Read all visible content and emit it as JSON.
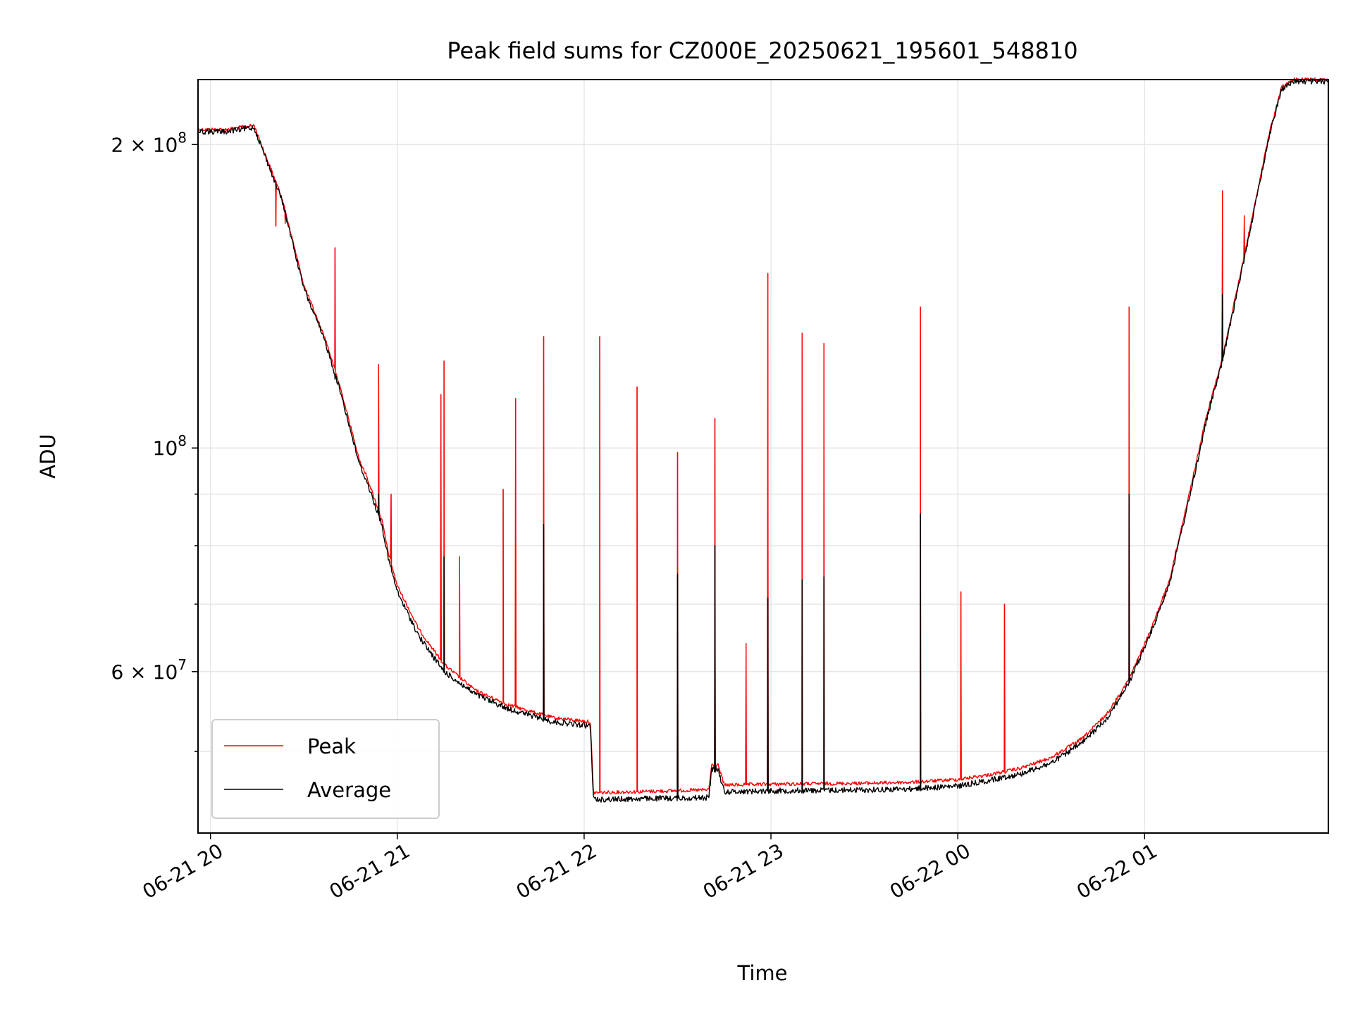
{
  "chart_data": {
    "type": "line",
    "title": "Peak field sums for CZ000E_20250621_195601_548810",
    "xlabel": "Time",
    "ylabel": "ADU",
    "yscale": "log",
    "ylim": [
      41500000,
      232000000
    ],
    "xlim": [
      "2025-06-21 19:56",
      "2025-06-22 01:59"
    ],
    "grid": true,
    "legend_position": "lower-left",
    "x_ticks": [
      {
        "t": "2025-06-21 20:00",
        "label": "06-21 20"
      },
      {
        "t": "2025-06-21 21:00",
        "label": "06-21 21"
      },
      {
        "t": "2025-06-21 22:00",
        "label": "06-21 22"
      },
      {
        "t": "2025-06-21 23:00",
        "label": "06-21 23"
      },
      {
        "t": "2025-06-22 00:00",
        "label": "06-22 00"
      },
      {
        "t": "2025-06-22 01:00",
        "label": "06-22 01"
      }
    ],
    "y_ticks": [
      {
        "value": 60000000,
        "base": "6",
        "exp": "7"
      },
      {
        "value": 100000000,
        "base": "",
        "exp": "8"
      },
      {
        "value": 200000000,
        "base": "2",
        "exp": "8"
      }
    ],
    "y_minor_ticks": [
      50000000,
      70000000,
      80000000,
      90000000
    ],
    "series": [
      {
        "name": "Peak",
        "color": "#ff0000",
        "baseline": [
          [
            "2025-06-21 19:56",
            207000000
          ],
          [
            "2025-06-21 20:05",
            207000000
          ],
          [
            "2025-06-21 20:14",
            209000000
          ],
          [
            "2025-06-21 20:23",
            177000000
          ],
          [
            "2025-06-21 20:30",
            145000000
          ],
          [
            "2025-06-21 20:37",
            128000000
          ],
          [
            "2025-06-21 20:42",
            114000000
          ],
          [
            "2025-06-21 20:45",
            105000000
          ],
          [
            "2025-06-21 20:48",
            97000000
          ],
          [
            "2025-06-21 20:50",
            94000000
          ],
          [
            "2025-06-21 20:55",
            85000000
          ],
          [
            "2025-06-21 20:57",
            79000000
          ],
          [
            "2025-06-21 21:00",
            73000000
          ],
          [
            "2025-06-21 21:07",
            66000000
          ],
          [
            "2025-06-21 21:15",
            61000000
          ],
          [
            "2025-06-21 21:25",
            57500000
          ],
          [
            "2025-06-21 21:35",
            55700000
          ],
          [
            "2025-06-21 21:50",
            54000000
          ],
          [
            "2025-06-21 22:02",
            53500000
          ],
          [
            "2025-06-21 22:03",
            45500000
          ],
          [
            "2025-06-21 22:40",
            45800000
          ],
          [
            "2025-06-21 22:41",
            48500000
          ],
          [
            "2025-06-21 22:43",
            48500000
          ],
          [
            "2025-06-21 22:45",
            46300000
          ],
          [
            "2025-06-21 23:00",
            46400000
          ],
          [
            "2025-06-21 23:30",
            46500000
          ],
          [
            "2025-06-21 23:45",
            46600000
          ],
          [
            "2025-06-22 00:00",
            46900000
          ],
          [
            "2025-06-22 00:10",
            47400000
          ],
          [
            "2025-06-22 00:20",
            48100000
          ],
          [
            "2025-06-22 00:30",
            49300000
          ],
          [
            "2025-06-22 00:40",
            51500000
          ],
          [
            "2025-06-22 00:48",
            54500000
          ],
          [
            "2025-06-22 00:55",
            59000000
          ],
          [
            "2025-06-22 01:02",
            66000000
          ],
          [
            "2025-06-22 01:08",
            74000000
          ],
          [
            "2025-06-22 01:15",
            92000000
          ],
          [
            "2025-06-22 01:20",
            108000000
          ],
          [
            "2025-06-22 01:25",
            123000000
          ],
          [
            "2025-06-22 01:30",
            145000000
          ],
          [
            "2025-06-22 01:35",
            172000000
          ],
          [
            "2025-06-22 01:40",
            205000000
          ],
          [
            "2025-06-22 01:44",
            228000000
          ],
          [
            "2025-06-22 01:48",
            232000000
          ],
          [
            "2025-06-22 01:59",
            232000000
          ]
        ],
        "spikes": [
          [
            "2025-06-21 20:21",
            166000000
          ],
          [
            "2025-06-21 20:24",
            167000000
          ],
          [
            "2025-06-21 20:40",
            158000000
          ],
          [
            "2025-06-21 20:54",
            121000000
          ],
          [
            "2025-06-21 20:58",
            90000000
          ],
          [
            "2025-06-21 21:14",
            113000000
          ],
          [
            "2025-06-21 21:15",
            122000000
          ],
          [
            "2025-06-21 21:20",
            78000000
          ],
          [
            "2025-06-21 21:34",
            91000000
          ],
          [
            "2025-06-21 21:38",
            112000000
          ],
          [
            "2025-06-21 21:47",
            129000000
          ],
          [
            "2025-06-21 22:05",
            129000000
          ],
          [
            "2025-06-21 22:17",
            115000000
          ],
          [
            "2025-06-21 22:30",
            99000000
          ],
          [
            "2025-06-21 22:42",
            107000000
          ],
          [
            "2025-06-21 22:52",
            64000000
          ],
          [
            "2025-06-21 22:59",
            149000000
          ],
          [
            "2025-06-21 23:10",
            130000000
          ],
          [
            "2025-06-21 23:17",
            127000000
          ],
          [
            "2025-06-21 23:48",
            138000000
          ],
          [
            "2025-06-22 00:01",
            72000000
          ],
          [
            "2025-06-22 00:15",
            70000000
          ],
          [
            "2025-06-22 00:55",
            138000000
          ],
          [
            "2025-06-22 01:06",
            71000000
          ],
          [
            "2025-06-22 01:25",
            180000000
          ],
          [
            "2025-06-22 01:32",
            170000000
          ]
        ]
      },
      {
        "name": "Average",
        "color": "#000000",
        "baseline": [
          [
            "2025-06-21 19:56",
            206000000
          ],
          [
            "2025-06-21 20:05",
            206000000
          ],
          [
            "2025-06-21 20:14",
            208000000
          ],
          [
            "2025-06-21 20:23",
            176000000
          ],
          [
            "2025-06-21 20:30",
            144000000
          ],
          [
            "2025-06-21 20:37",
            127000000
          ],
          [
            "2025-06-21 20:42",
            113000000
          ],
          [
            "2025-06-21 20:45",
            104000000
          ],
          [
            "2025-06-21 20:48",
            96000000
          ],
          [
            "2025-06-21 20:50",
            93000000
          ],
          [
            "2025-06-21 20:55",
            84000000
          ],
          [
            "2025-06-21 20:57",
            78000000
          ],
          [
            "2025-06-21 21:00",
            72000000
          ],
          [
            "2025-06-21 21:07",
            65000000
          ],
          [
            "2025-06-21 21:15",
            60000000
          ],
          [
            "2025-06-21 21:25",
            57000000
          ],
          [
            "2025-06-21 21:35",
            55200000
          ],
          [
            "2025-06-21 21:50",
            53500000
          ],
          [
            "2025-06-21 22:02",
            53000000
          ],
          [
            "2025-06-21 22:03",
            44800000
          ],
          [
            "2025-06-21 22:40",
            45000000
          ],
          [
            "2025-06-21 22:41",
            48000000
          ],
          [
            "2025-06-21 22:43",
            48000000
          ],
          [
            "2025-06-21 22:45",
            45600000
          ],
          [
            "2025-06-21 23:00",
            45700000
          ],
          [
            "2025-06-21 23:30",
            45800000
          ],
          [
            "2025-06-21 23:45",
            45900000
          ],
          [
            "2025-06-22 00:00",
            46200000
          ],
          [
            "2025-06-22 00:10",
            46800000
          ],
          [
            "2025-06-22 00:20",
            47500000
          ],
          [
            "2025-06-22 00:30",
            48700000
          ],
          [
            "2025-06-22 00:40",
            51000000
          ],
          [
            "2025-06-22 00:48",
            54000000
          ],
          [
            "2025-06-22 00:55",
            58500000
          ],
          [
            "2025-06-22 01:02",
            65500000
          ],
          [
            "2025-06-22 01:08",
            73500000
          ],
          [
            "2025-06-22 01:15",
            91000000
          ],
          [
            "2025-06-22 01:20",
            107000000
          ],
          [
            "2025-06-22 01:25",
            122000000
          ],
          [
            "2025-06-22 01:30",
            144000000
          ],
          [
            "2025-06-22 01:35",
            171000000
          ],
          [
            "2025-06-22 01:40",
            204000000
          ],
          [
            "2025-06-22 01:44",
            227000000
          ],
          [
            "2025-06-22 01:48",
            231000000
          ],
          [
            "2025-06-22 01:59",
            231000000
          ]
        ],
        "spikes": [
          [
            "2025-06-21 20:40",
            117000000
          ],
          [
            "2025-06-21 20:54",
            90000000
          ],
          [
            "2025-06-21 21:15",
            78000000
          ],
          [
            "2025-06-21 21:47",
            84000000
          ],
          [
            "2025-06-21 22:30",
            75000000
          ],
          [
            "2025-06-21 22:42",
            80000000
          ],
          [
            "2025-06-21 22:59",
            71000000
          ],
          [
            "2025-06-21 23:10",
            74000000
          ],
          [
            "2025-06-21 23:17",
            74500000
          ],
          [
            "2025-06-21 23:48",
            86000000
          ],
          [
            "2025-06-22 00:55",
            90000000
          ],
          [
            "2025-06-22 01:25",
            142000000
          ]
        ]
      }
    ]
  }
}
